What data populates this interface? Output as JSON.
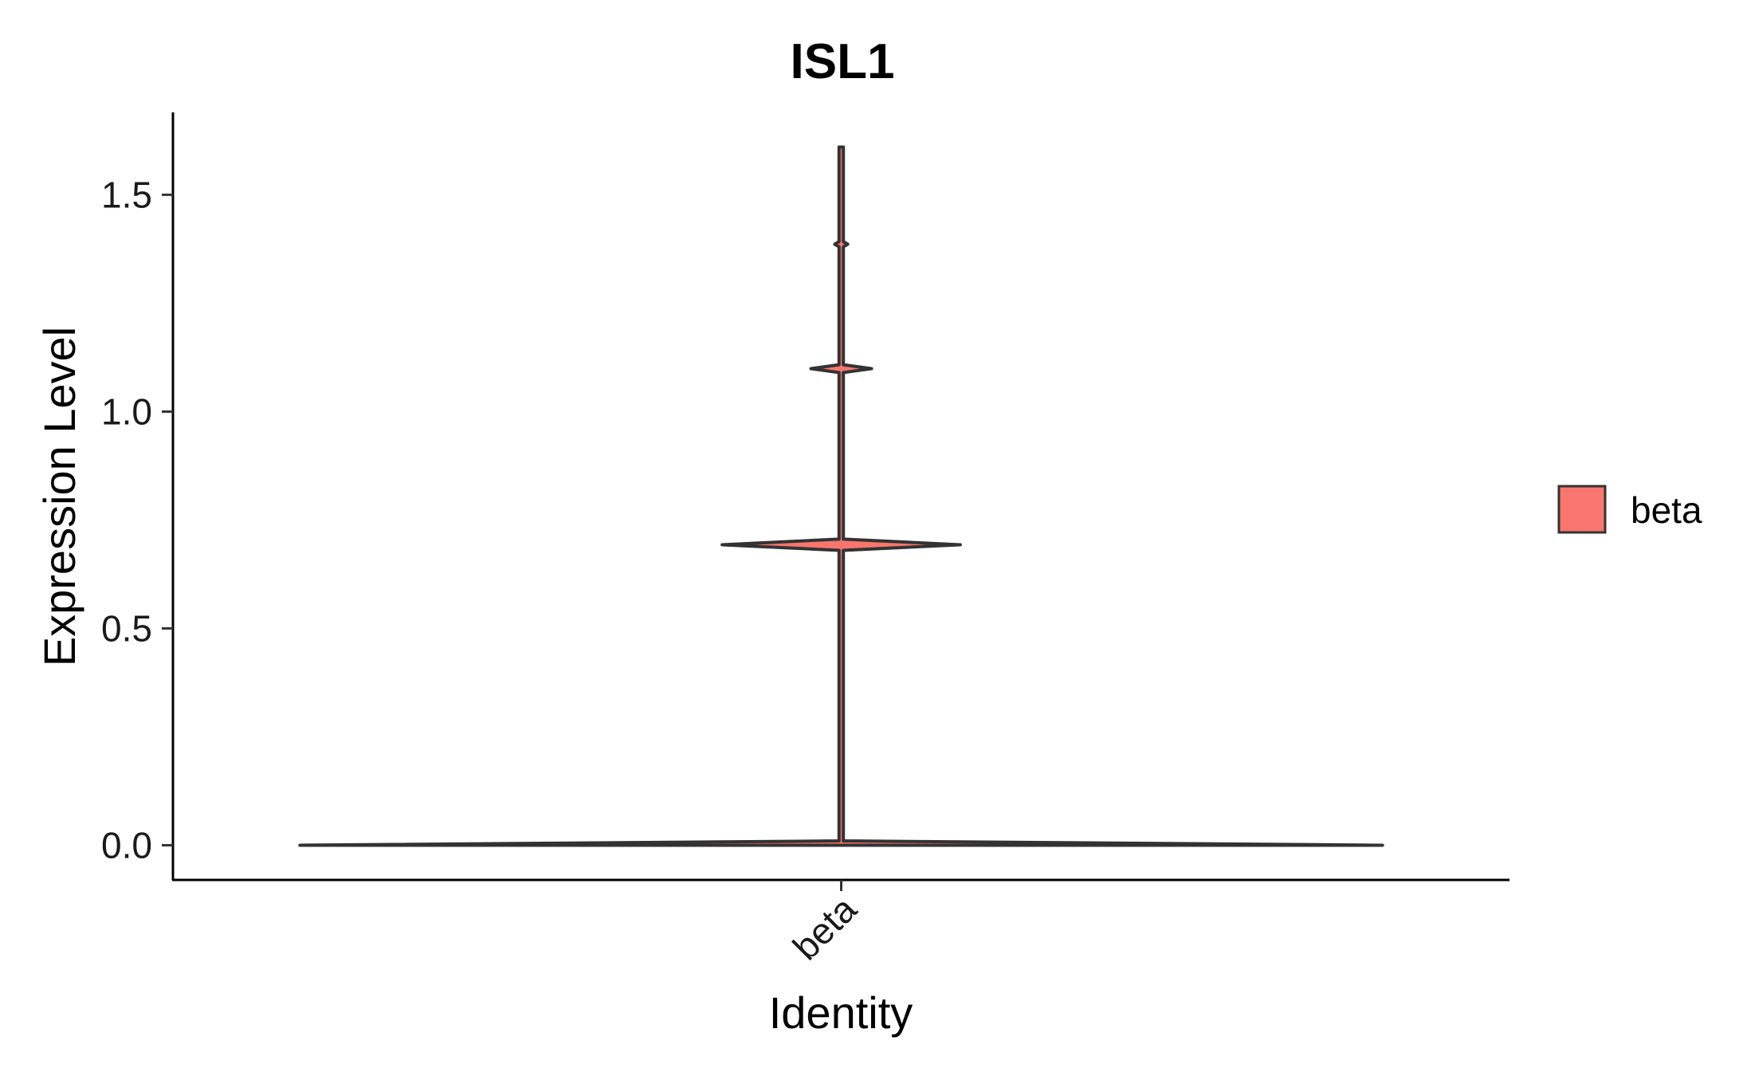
{
  "chart_data": {
    "type": "violin",
    "title": "ISL1",
    "xlabel": "Identity",
    "ylabel": "Expression Level",
    "categories": [
      "beta"
    ],
    "ylim": [
      -0.08,
      1.69
    ],
    "yticks": [
      0.0,
      0.5,
      1.0,
      1.5
    ],
    "ytick_labels": [
      "0.0",
      "0.5",
      "1.0",
      "1.5"
    ],
    "legend": {
      "title": "",
      "entries": [
        "beta"
      ],
      "position": "right"
    },
    "series": [
      {
        "name": "beta",
        "color": "#F8766D",
        "y_min": 0.0,
        "y_max": 1.61,
        "density_profile": [
          {
            "y": 0.0,
            "relative_width": 1.0
          },
          {
            "y": 0.01,
            "relative_width": 0.004
          },
          {
            "y": 0.68,
            "relative_width": 0.004
          },
          {
            "y": 0.693,
            "relative_width": 0.22
          },
          {
            "y": 0.706,
            "relative_width": 0.004
          },
          {
            "y": 1.09,
            "relative_width": 0.004
          },
          {
            "y": 1.099,
            "relative_width": 0.056
          },
          {
            "y": 1.108,
            "relative_width": 0.004
          },
          {
            "y": 1.38,
            "relative_width": 0.004
          },
          {
            "y": 1.386,
            "relative_width": 0.012
          },
          {
            "y": 1.392,
            "relative_width": 0.004
          },
          {
            "y": 1.61,
            "relative_width": 0.004
          }
        ]
      }
    ]
  },
  "colors": {
    "axis": "#000000",
    "violin_outline": "#333333",
    "beta": "#F8766D"
  }
}
